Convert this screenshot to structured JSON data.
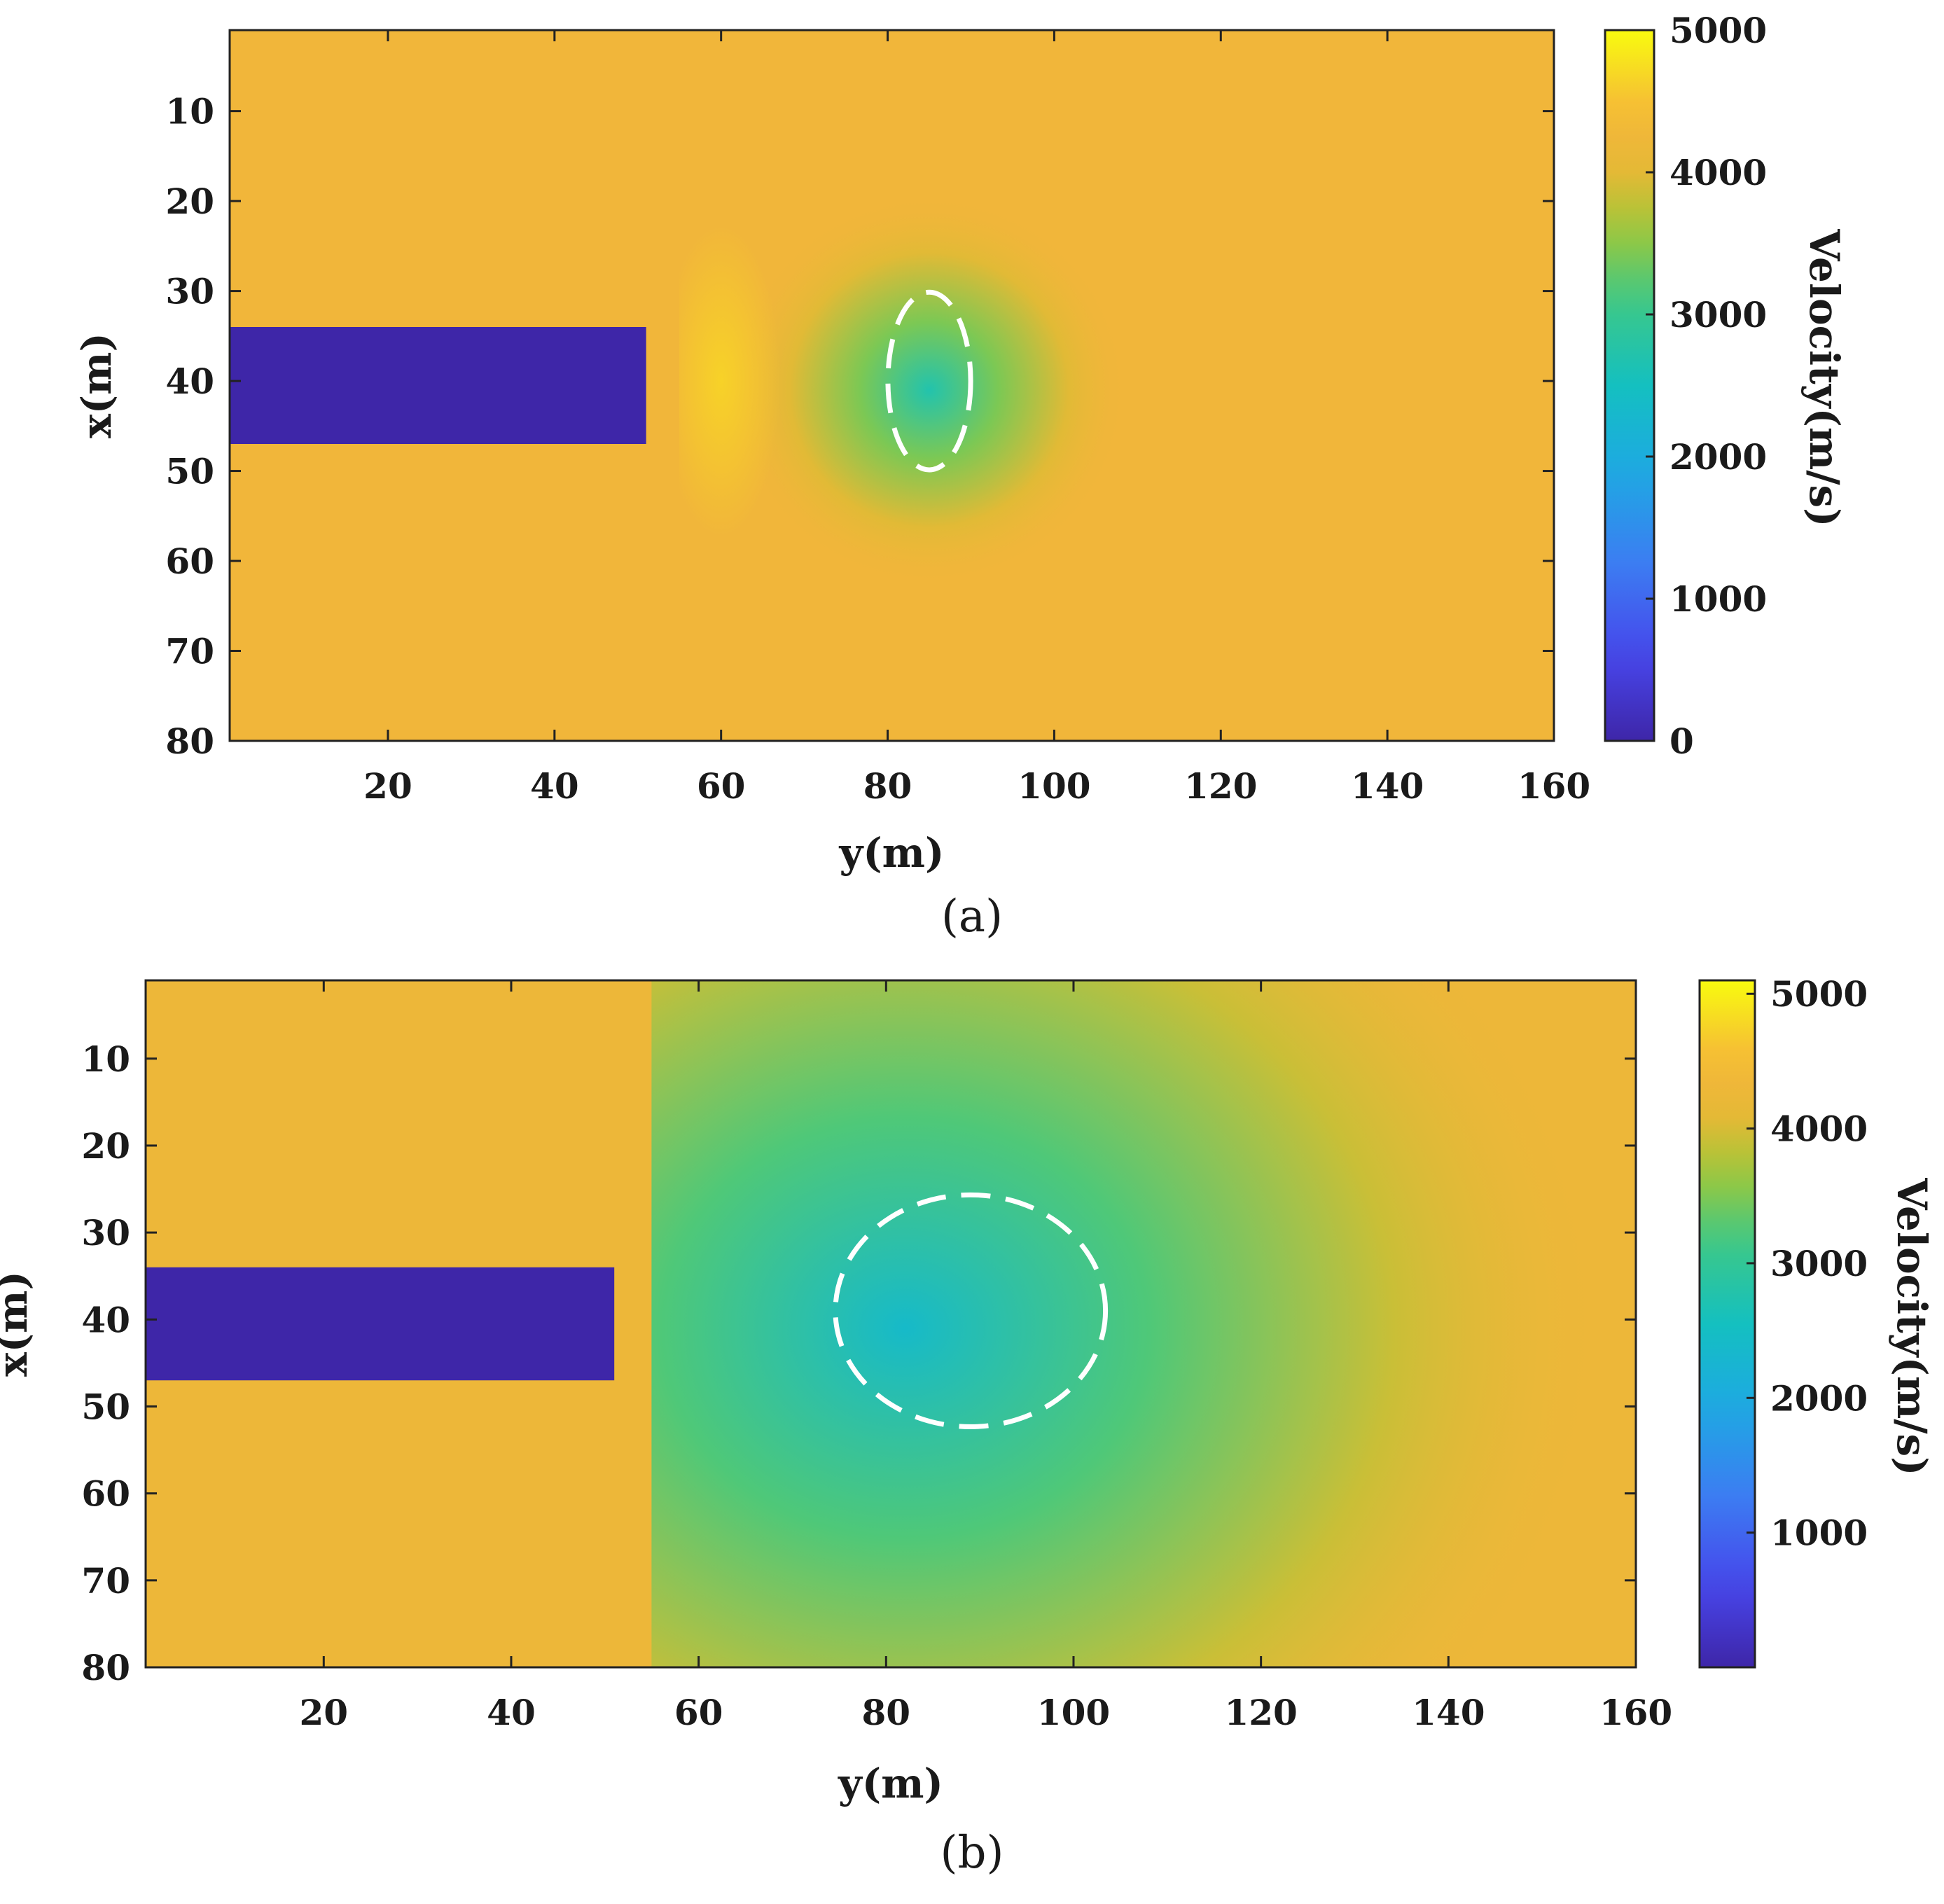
{
  "chart_data": [
    {
      "type": "heatmap",
      "panel_label": "(a)",
      "xlabel": "y(m)",
      "ylabel": "x(m)",
      "xlim": [
        1,
        160
      ],
      "ylim": [
        80,
        1
      ],
      "xticks": [
        20,
        40,
        60,
        80,
        100,
        120,
        140,
        160
      ],
      "xtick_labels": [
        "20",
        "40",
        "60",
        "80",
        "100",
        "120",
        "140",
        "160"
      ],
      "yticks": [
        10,
        20,
        30,
        40,
        50,
        60,
        70,
        80
      ],
      "ytick_labels": [
        "10",
        "20",
        "30",
        "40",
        "50",
        "60",
        "70",
        "80"
      ],
      "colorbar": {
        "title": "Velocity(m/s)",
        "range": [
          0,
          5000
        ],
        "ticks": [
          0,
          1000,
          2000,
          3000,
          4000,
          5000
        ],
        "tick_labels": [
          "0",
          "1000",
          "2000",
          "3000",
          "4000",
          "5000"
        ]
      },
      "background_velocity": 4300,
      "tunnel": {
        "y_range": [
          1,
          51
        ],
        "x_range": [
          34,
          47
        ],
        "velocity": 0
      },
      "zones": [
        {
          "type": "low_velocity_center",
          "y": 85,
          "x": 41,
          "velocity": 2700,
          "radius_y": 24,
          "radius_x": 22
        },
        {
          "type": "high_velocity_halo",
          "y": 60,
          "x": 40,
          "velocity": 4650
        }
      ],
      "dashed_ellipse": {
        "center_y": 85,
        "center_x": 40,
        "semi_y": 5,
        "semi_x": 10
      }
    },
    {
      "type": "heatmap",
      "panel_label": "(b)",
      "xlabel": "y(m)",
      "ylabel": "x(m)",
      "xlim": [
        1,
        160
      ],
      "ylim": [
        80,
        1
      ],
      "xticks": [
        20,
        40,
        60,
        80,
        100,
        120,
        140,
        160
      ],
      "xtick_labels": [
        "20",
        "40",
        "60",
        "80",
        "100",
        "120",
        "140",
        "160"
      ],
      "yticks": [
        10,
        20,
        30,
        40,
        50,
        60,
        70,
        80
      ],
      "ytick_labels": [
        "10",
        "20",
        "30",
        "40",
        "50",
        "60",
        "70",
        "80"
      ],
      "colorbar": {
        "title": "Velocity(m/s)",
        "range": [
          0,
          5100
        ],
        "ticks": [
          1000,
          2000,
          3000,
          4000,
          5000
        ],
        "tick_labels": [
          "1000",
          "2000",
          "3000",
          "4000",
          "5000"
        ]
      },
      "background_velocity": 4300,
      "tunnel": {
        "y_range": [
          1,
          51
        ],
        "x_range": [
          34,
          47
        ],
        "velocity": 0
      },
      "zones": [
        {
          "type": "low_velocity_center",
          "y": 82,
          "x": 41,
          "velocity": 2400,
          "radius_y": 75,
          "radius_x": 70
        },
        {
          "type": "high_velocity_spot",
          "y": 53,
          "x": 35,
          "velocity": 4700
        },
        {
          "type": "high_velocity_spot",
          "y": 53,
          "x": 46,
          "velocity": 4700
        }
      ],
      "dashed_ellipse": {
        "center_y": 89,
        "center_x": 39,
        "semi_y": 14.5,
        "semi_x": 13.5
      }
    }
  ]
}
